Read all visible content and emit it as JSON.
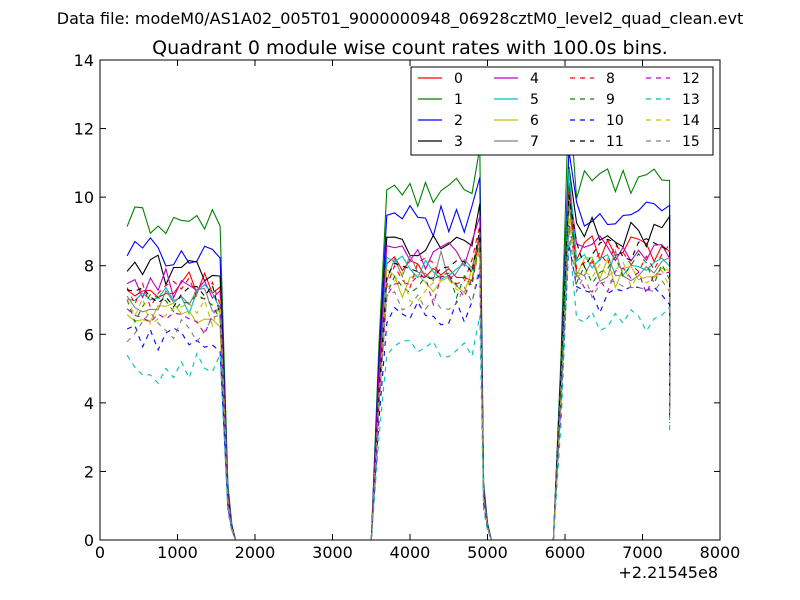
{
  "chart_data": {
    "type": "line",
    "suptitle": "Data file: modeM0/AS1A02_005T01_9000000948_06928cztM0_level2_quad_clean.evt",
    "title": "Quadrant 0 module wise count rates with 100.0s bins.",
    "xlabel": "",
    "ylabel": "",
    "x_offset_label": "+2.21545e8",
    "xlim": [
      0,
      8000
    ],
    "ylim": [
      0,
      14
    ],
    "xticks": [
      0,
      1000,
      2000,
      3000,
      4000,
      5000,
      6000,
      7000,
      8000
    ],
    "yticks": [
      0,
      2,
      4,
      6,
      8,
      10,
      12,
      14
    ],
    "grid": false,
    "legend_position": "top-right",
    "legend_columns": 4,
    "segments": [
      {
        "x_start": 350,
        "x_end": 1550,
        "drop_to": 1750
      },
      {
        "x_start": 3600,
        "x_end": 4850,
        "drop_to": 5050
      },
      {
        "x_start": 5950,
        "x_end": 7350,
        "drop_to": 7350
      }
    ],
    "series": [
      {
        "name": "0",
        "color": "#ff0000",
        "style": "solid",
        "levels": [
          7.5,
          8.0,
          8.5
        ]
      },
      {
        "name": "1",
        "color": "#008000",
        "style": "solid",
        "levels": [
          9.3,
          10.1,
          10.4
        ]
      },
      {
        "name": "2",
        "color": "#0000ff",
        "style": "solid",
        "levels": [
          8.4,
          9.3,
          9.5
        ]
      },
      {
        "name": "3",
        "color": "#000000",
        "style": "solid",
        "levels": [
          7.9,
          8.6,
          9.0
        ]
      },
      {
        "name": "4",
        "color": "#bf00bf",
        "style": "solid",
        "levels": [
          7.5,
          8.3,
          8.5
        ]
      },
      {
        "name": "5",
        "color": "#00bfbf",
        "style": "solid",
        "levels": [
          7.0,
          7.9,
          8.1
        ]
      },
      {
        "name": "6",
        "color": "#bfbf00",
        "style": "solid",
        "levels": [
          6.5,
          7.5,
          7.8
        ]
      },
      {
        "name": "7",
        "color": "#808080",
        "style": "solid",
        "levels": [
          7.0,
          8.0,
          8.0
        ]
      },
      {
        "name": "8",
        "color": "#ff0000",
        "style": "dashed",
        "levels": [
          7.2,
          7.8,
          8.2
        ]
      },
      {
        "name": "9",
        "color": "#008000",
        "style": "dashed",
        "levels": [
          6.8,
          7.5,
          7.9
        ]
      },
      {
        "name": "10",
        "color": "#0000ff",
        "style": "dashed",
        "levels": [
          5.9,
          6.6,
          7.0
        ]
      },
      {
        "name": "11",
        "color": "#000000",
        "style": "dashed",
        "levels": [
          7.0,
          7.9,
          8.4
        ]
      },
      {
        "name": "12",
        "color": "#bf00bf",
        "style": "dashed",
        "levels": [
          6.4,
          7.3,
          7.6
        ]
      },
      {
        "name": "13",
        "color": "#00bfbf",
        "style": "dashed",
        "levels": [
          5.0,
          5.5,
          6.4
        ]
      },
      {
        "name": "14",
        "color": "#bfbf00",
        "style": "dashed",
        "levels": [
          6.6,
          7.4,
          7.7
        ]
      },
      {
        "name": "15",
        "color": "#808080",
        "style": "dashed",
        "levels": [
          6.2,
          7.1,
          7.4
        ]
      }
    ]
  }
}
